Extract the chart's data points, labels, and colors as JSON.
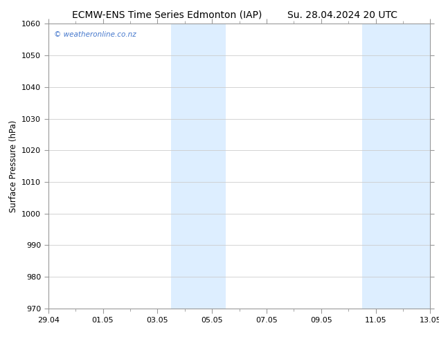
{
  "title_left": "ECMW-ENS Time Series Edmonton (IAP)",
  "title_right": "Su. 28.04.2024 20 UTC",
  "ylabel": "Surface Pressure (hPa)",
  "ylim": [
    970,
    1060
  ],
  "yticks": [
    970,
    980,
    990,
    1000,
    1010,
    1020,
    1030,
    1040,
    1050,
    1060
  ],
  "x_start_days": 0,
  "x_end_days": 14,
  "x_tick_labels": [
    "29.04",
    "01.05",
    "03.05",
    "05.05",
    "07.05",
    "09.05",
    "11.05",
    "13.05"
  ],
  "x_tick_positions": [
    0,
    2,
    4,
    6,
    8,
    10,
    12,
    14
  ],
  "shaded_bands": [
    {
      "x_start": 4.5,
      "x_end": 6.5
    },
    {
      "x_start": 11.5,
      "x_end": 14.0
    }
  ],
  "shade_color": "#ddeeff",
  "background_color": "#ffffff",
  "grid_color": "#cccccc",
  "watermark": "© weatheronline.co.nz",
  "watermark_color": "#4477cc",
  "title_fontsize": 10,
  "axis_label_fontsize": 8.5,
  "tick_fontsize": 8
}
